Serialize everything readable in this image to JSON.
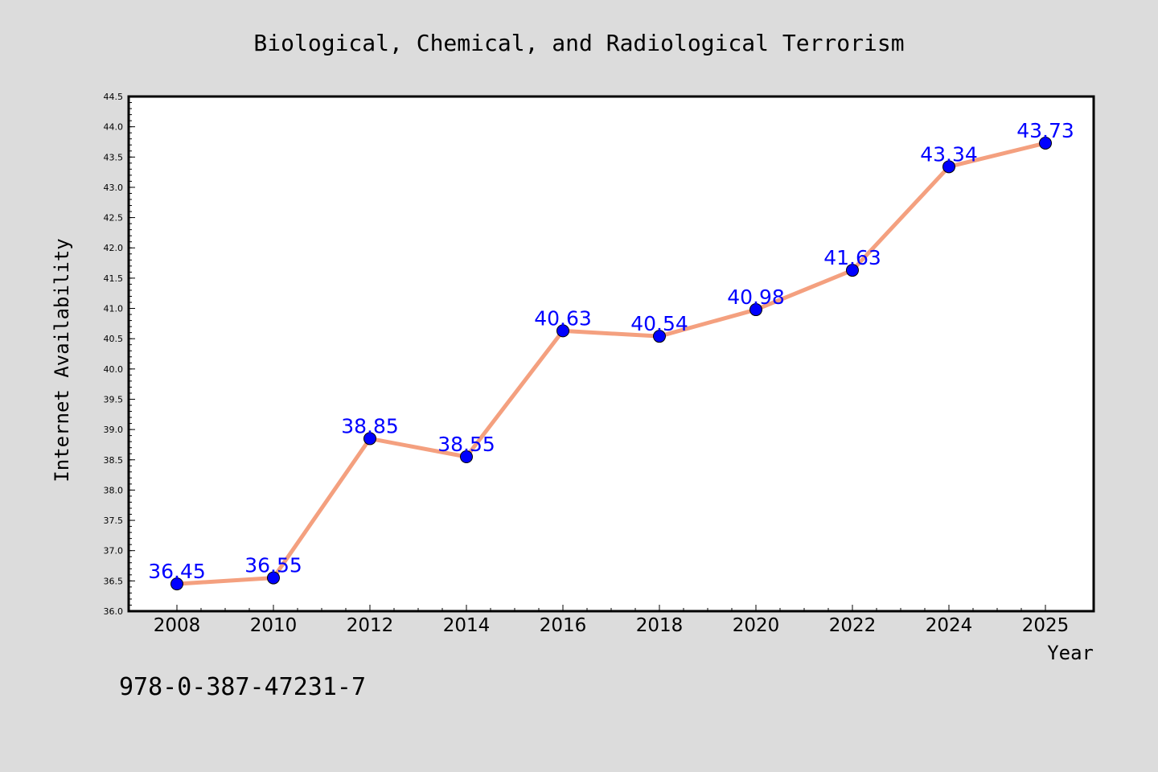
{
  "chart_data": {
    "type": "line",
    "title": "Biological, Chemical, and Radiological Terrorism",
    "xlabel": "Year",
    "ylabel": "Internet Availability",
    "categories": [
      "2008",
      "2010",
      "2012",
      "2014",
      "2016",
      "2018",
      "2020",
      "2022",
      "2024",
      "2025"
    ],
    "series": [
      {
        "values": [
          36.45,
          36.55,
          38.85,
          38.55,
          40.63,
          40.54,
          40.98,
          41.63,
          43.34,
          43.73
        ]
      }
    ],
    "data_labels": [
      "36.45",
      "36.55",
      "38.85",
      "38.55",
      "40.63",
      "40.54",
      "40.98",
      "41.63",
      "43.34",
      "43.73"
    ],
    "ylim": [
      36.0,
      44.5
    ],
    "yticks": [
      "36.0",
      "36.5",
      "37.0",
      "37.5",
      "38.0",
      "38.5",
      "39.0",
      "39.5",
      "40.0",
      "40.5",
      "41.0",
      "41.5",
      "42.0",
      "42.5",
      "43.0",
      "43.5",
      "44.0",
      "44.5"
    ],
    "grid": false,
    "line_color": "#f4a07f",
    "marker_color": "#0000ff",
    "label_color": "#0000ff"
  },
  "annotation": "978-0-387-47231-7"
}
